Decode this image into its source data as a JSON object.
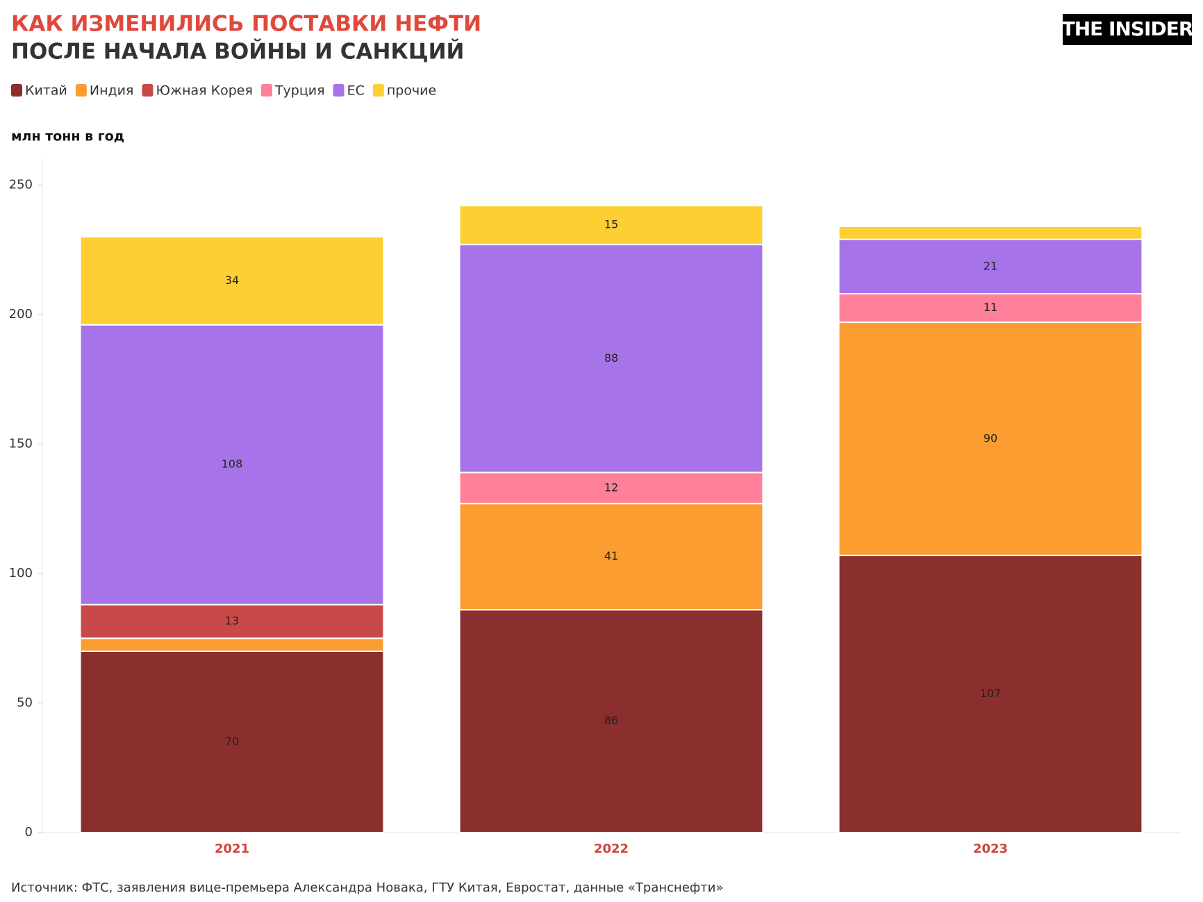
{
  "chart_data": {
    "type": "stacked_bar",
    "title": "КАК ИЗМЕНИЛИСЬ ПОСТАВКИ НЕФТИ",
    "subtitle": "ПОСЛЕ НАЧАЛА ВОЙНЫ И САНКЦИЙ",
    "brand": "THE INSIDER",
    "y_label": "млн тонн в год",
    "source": "Источник: ФТС, заявления вице-премьера Александра Новака, ГТУ Китая, Евростат, данные «Транснефти»",
    "categories": [
      "2021",
      "2022",
      "2023"
    ],
    "series": [
      {
        "name": "Китай",
        "color": "#8b2e2e",
        "values": [
          70,
          86,
          107
        ]
      },
      {
        "name": "Индия",
        "color": "#fb9d30",
        "values": [
          5,
          41,
          90
        ]
      },
      {
        "name": "Южная Корея",
        "color": "#c94848",
        "values": [
          13,
          null,
          null
        ]
      },
      {
        "name": "Турция",
        "color": "#fe8099",
        "values": [
          null,
          12,
          11
        ]
      },
      {
        "name": "ЕС",
        "color": "#a674e8",
        "values": [
          108,
          88,
          21
        ]
      },
      {
        "name": "прочие",
        "color": "#fdcf33",
        "values": [
          34,
          15,
          5
        ]
      }
    ],
    "ylim": [
      0,
      260
    ],
    "yticks": [
      0,
      50,
      100,
      150,
      200,
      250
    ],
    "grid": false
  }
}
